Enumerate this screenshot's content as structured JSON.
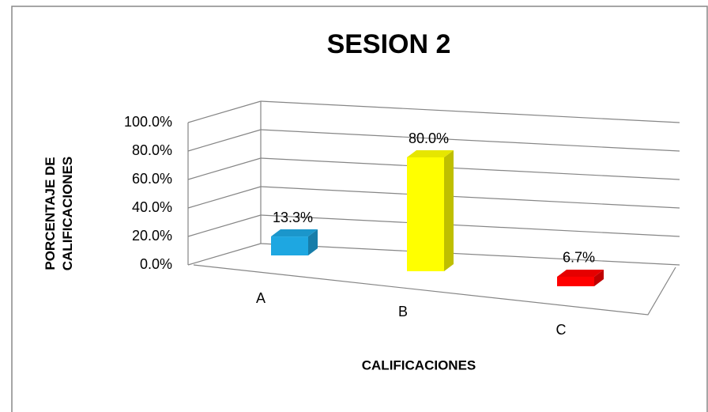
{
  "chart_data": {
    "type": "bar3d",
    "title": "SESION 2",
    "y_label": "PORCENTAJE DE CALIFICACIONES",
    "x_label": "CALIFICACIONES",
    "categories": [
      "A",
      "B",
      "C"
    ],
    "values": [
      13.3,
      80.0,
      6.7
    ],
    "value_labels": [
      "13.3%",
      "80.0%",
      "6.7%"
    ],
    "colors": [
      "#1ea7e1",
      "#ffff00",
      "#ff0000"
    ],
    "ylim": [
      0,
      100
    ],
    "yticks": [
      {
        "value": 0,
        "label": "0.0%"
      },
      {
        "value": 20,
        "label": "20.0%"
      },
      {
        "value": 40,
        "label": "40.0%"
      },
      {
        "value": 60,
        "label": "60.0%"
      },
      {
        "value": 80,
        "label": "80.0%"
      },
      {
        "value": 100,
        "label": "100.0%"
      }
    ],
    "grid": true
  }
}
